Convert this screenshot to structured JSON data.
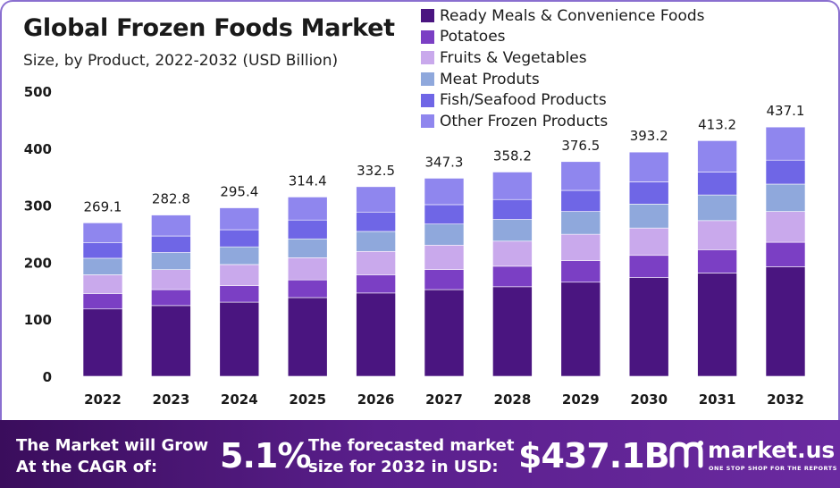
{
  "chart_data": {
    "type": "bar",
    "stacked": true,
    "title": "Global Frozen Foods Market",
    "subtitle": "Size, by Product, 2022-2032 (USD Billion)",
    "categories": [
      "2022",
      "2023",
      "2024",
      "2025",
      "2026",
      "2027",
      "2028",
      "2029",
      "2030",
      "2031",
      "2032"
    ],
    "totals": [
      "269.1",
      "282.8",
      "295.4",
      "314.4",
      "332.5",
      "347.3",
      "358.2",
      "376.5",
      "393.2",
      "413.2",
      "437.1"
    ],
    "ylim": [
      0,
      500
    ],
    "yticks": [
      "0",
      "100",
      "200",
      "300",
      "400",
      "500"
    ],
    "grid": false,
    "legend_position": "top-right",
    "series": [
      {
        "name": "Ready Meals & Convenience Foods",
        "color": "#4a1580",
        "values": [
          118,
          124,
          130,
          138,
          146,
          152,
          157,
          165,
          173,
          181,
          192
        ]
      },
      {
        "name": "Potatoes",
        "color": "#7b3fc4",
        "values": [
          27,
          28,
          29,
          31,
          32,
          35,
          36,
          38,
          39,
          41,
          43
        ]
      },
      {
        "name": "Fruits & Vegetables",
        "color": "#c9a9ec",
        "values": [
          33,
          35,
          37,
          39,
          41,
          43,
          44,
          46,
          48,
          51,
          54
        ]
      },
      {
        "name": "Meat Produts",
        "color": "#8fa8dc",
        "values": [
          29,
          30,
          31,
          33,
          35,
          37,
          38,
          40,
          42,
          45,
          48
        ]
      },
      {
        "name": "Fish/Seafood Products",
        "color": "#6f66e6",
        "values": [
          27,
          29,
          30,
          33,
          34,
          34,
          35,
          37,
          39,
          40,
          42
        ]
      },
      {
        "name": "Other Frozen Products",
        "color": "#8f86ee",
        "values": [
          35.1,
          36.8,
          38.4,
          40.4,
          44.5,
          46.3,
          48.2,
          50.5,
          52.2,
          55.2,
          58.1
        ]
      }
    ]
  },
  "footer": {
    "grow_line1": "The Market will Grow",
    "grow_line2": "At the CAGR of:",
    "cagr": "5.1%",
    "forecast_line1": "The forecasted market",
    "forecast_line2": "size for 2032 in USD:",
    "forecast_value": "$437.1B",
    "brand": "market.us",
    "tagline": "ONE STOP SHOP FOR THE REPORTS"
  }
}
